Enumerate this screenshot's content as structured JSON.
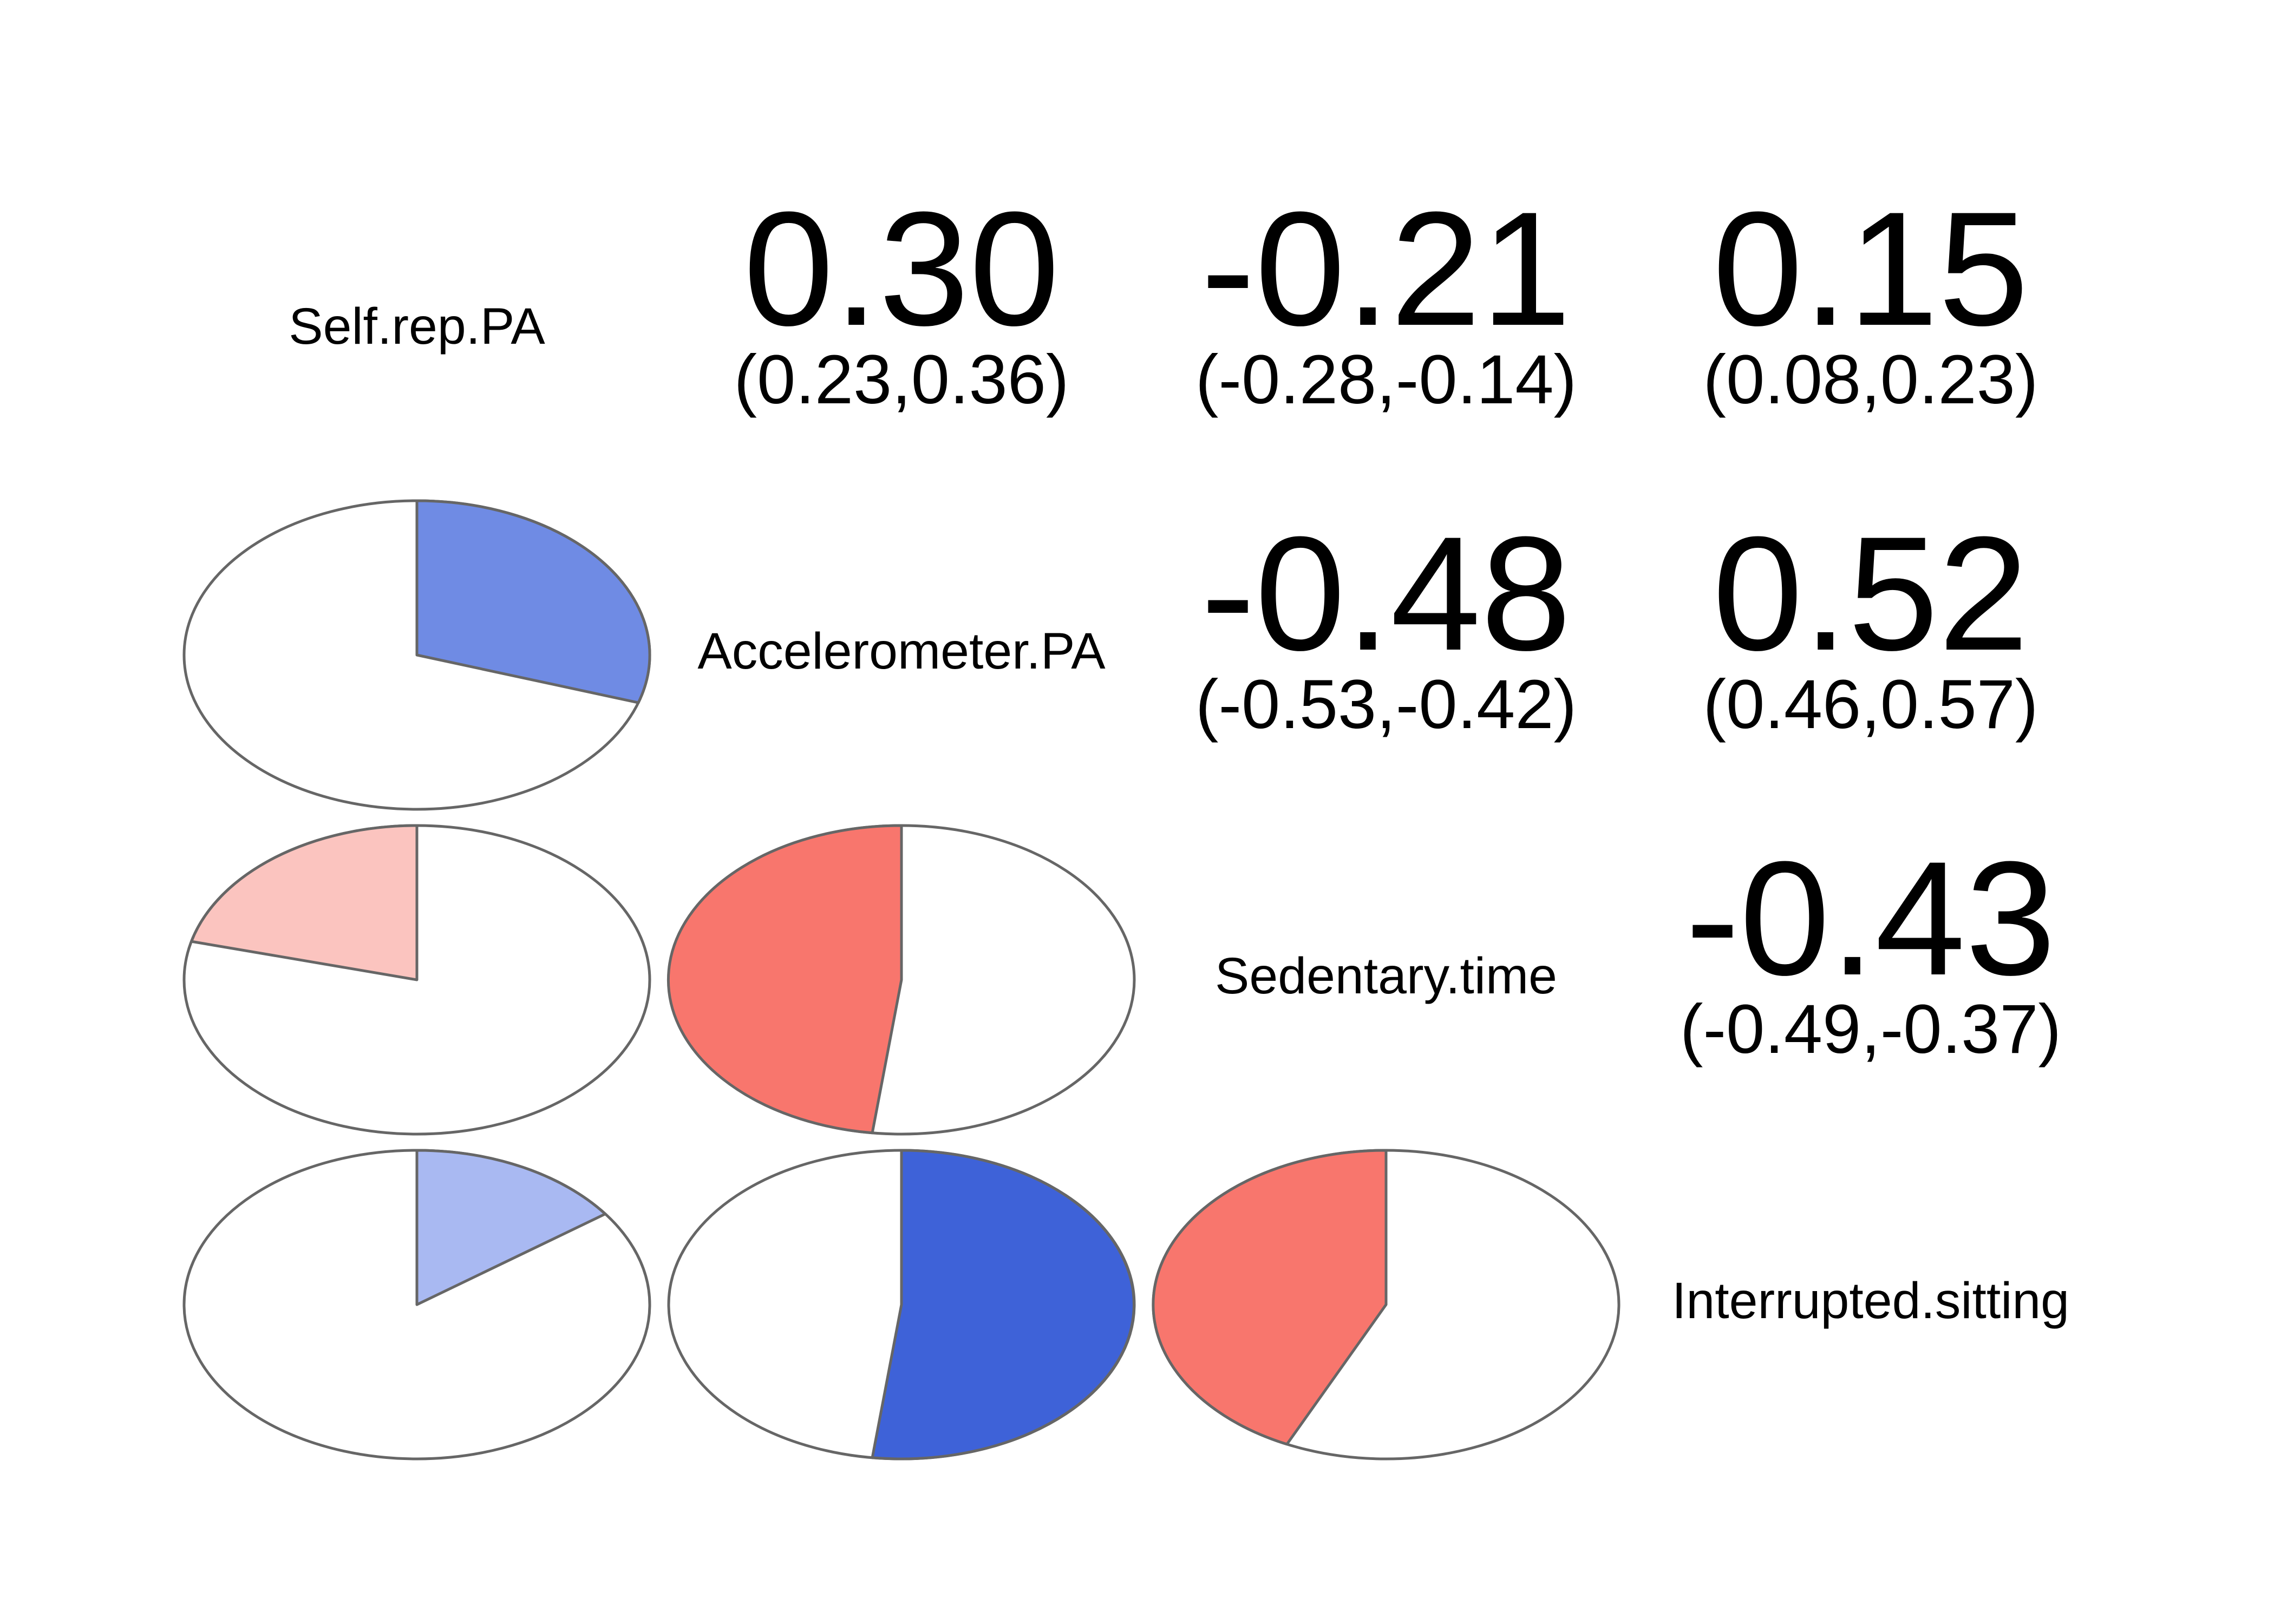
{
  "chart_data": {
    "type": "corrgram",
    "variables": [
      "Self.rep.PA",
      "Accelerometer.PA",
      "Sedentary.time",
      "Interrupted.sitting"
    ],
    "lower_panel": "pie",
    "upper_panel": "correlation coefficient with confidence interval",
    "colors": {
      "positive_strong": "#3e62d8",
      "positive_medium": "#6f8be4",
      "positive_weak": "#a9b9f2",
      "negative_strong": "#f8766d",
      "negative_weak": "#fbc4bf",
      "pie_background": "#ffffff",
      "outline": "#666666"
    },
    "pairs": [
      {
        "row": 0,
        "col": 1,
        "r": 0.3,
        "coef": "0.30",
        "ci": "(0.23,0.36)"
      },
      {
        "row": 0,
        "col": 2,
        "r": -0.21,
        "coef": "-0.21",
        "ci": "(-0.28,-0.14)"
      },
      {
        "row": 0,
        "col": 3,
        "r": 0.15,
        "coef": "0.15",
        "ci": "(0.08,0.23)"
      },
      {
        "row": 1,
        "col": 2,
        "r": -0.48,
        "coef": "-0.48",
        "ci": "(-0.53,-0.42)"
      },
      {
        "row": 1,
        "col": 3,
        "r": 0.52,
        "coef": "0.52",
        "ci": "(0.46,0.57)"
      },
      {
        "row": 2,
        "col": 3,
        "r": -0.43,
        "coef": "-0.43",
        "ci": "(-0.49,-0.37)"
      }
    ]
  }
}
